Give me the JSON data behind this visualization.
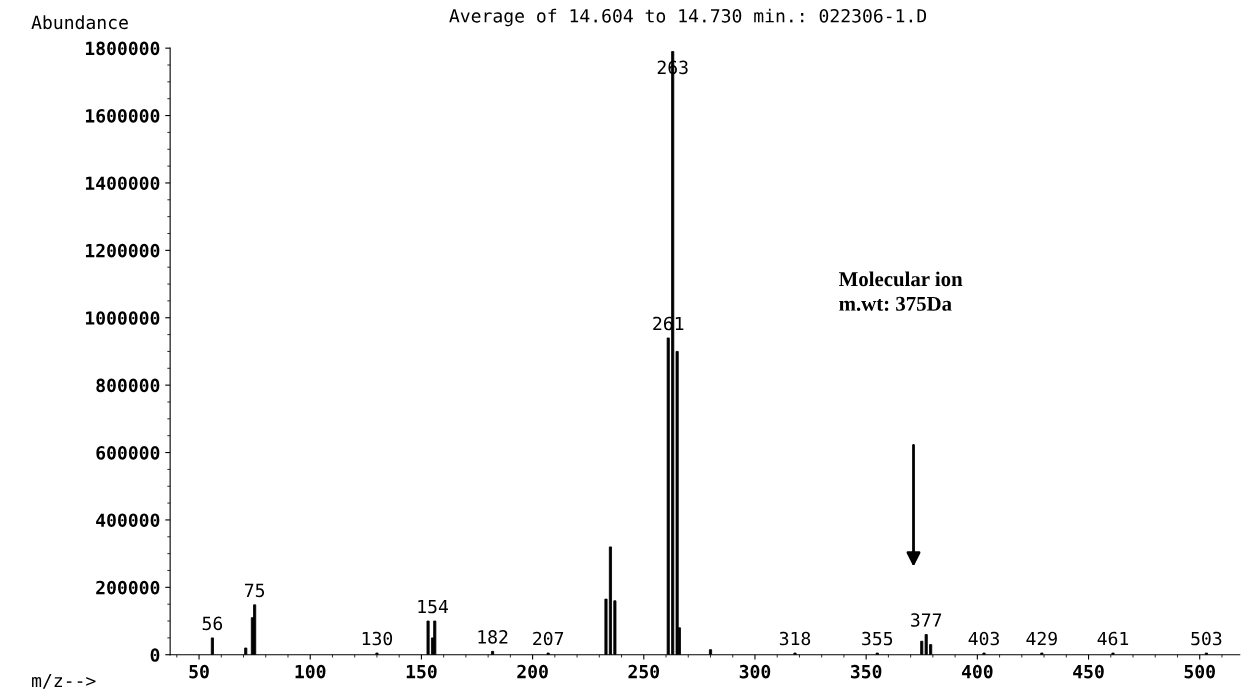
{
  "chart_data": {
    "type": "bar",
    "title": "Average of 14.604 to 14.730 min.: 022306-1.D",
    "xlabel": "m/z-->",
    "ylabel": "Abundance",
    "color": "#000000",
    "x": [
      56,
      71,
      74,
      75,
      130,
      153,
      155,
      156,
      182,
      207,
      233,
      235,
      237,
      261,
      263,
      265,
      266,
      280,
      318,
      355,
      375,
      377,
      379,
      403,
      429,
      461,
      503
    ],
    "values": [
      50000,
      20000,
      110000,
      148000,
      5000,
      100000,
      50000,
      100000,
      10000,
      5000,
      165000,
      320000,
      160000,
      940000,
      1790000,
      900000,
      80000,
      15000,
      5000,
      5000,
      40000,
      60000,
      30000,
      5000,
      5000,
      5000,
      5000
    ],
    "xlim": [
      37,
      518
    ],
    "ylim": [
      0,
      1800000
    ],
    "xticks": [
      50,
      100,
      150,
      200,
      250,
      300,
      350,
      400,
      450,
      500
    ],
    "yticks": [
      0,
      200000,
      400000,
      600000,
      800000,
      1000000,
      1200000,
      1400000,
      1600000,
      1800000
    ],
    "grid": false,
    "annotations": [
      {
        "text": "56",
        "x": 56,
        "y": 50000
      },
      {
        "text": "75",
        "x": 75,
        "y": 148000
      },
      {
        "text": "130",
        "x": 130,
        "y": 5000
      },
      {
        "text": "154",
        "x": 155,
        "y": 100000
      },
      {
        "text": "182",
        "x": 182,
        "y": 10000
      },
      {
        "text": "207",
        "x": 207,
        "y": 5000
      },
      {
        "text": "261",
        "x": 261,
        "y": 940000
      },
      {
        "text": "263",
        "x": 263,
        "y": 1700000
      },
      {
        "text": "318",
        "x": 318,
        "y": 5000
      },
      {
        "text": "355",
        "x": 355,
        "y": 5000
      },
      {
        "text": "377",
        "x": 377,
        "y": 60000
      },
      {
        "text": "403",
        "x": 403,
        "y": 5000
      },
      {
        "text": "429",
        "x": 429,
        "y": 5000
      },
      {
        "text": "461",
        "x": 461,
        "y": 5000
      },
      {
        "text": "503",
        "x": 503,
        "y": 5000
      },
      "Molecular ion\nm.wt: 375Da"
    ]
  }
}
